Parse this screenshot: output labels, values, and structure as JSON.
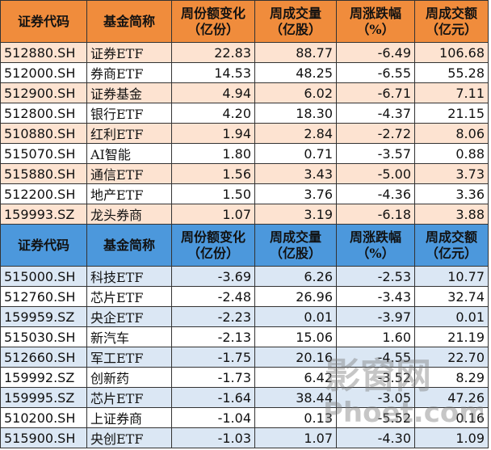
{
  "columns": [
    "证券代码",
    "基金简称",
    "周份额变化\n（亿份）",
    "周成交量\n（亿股）",
    "周涨跌幅\n（%）",
    "周成交额\n（亿元）"
  ],
  "inflow_rows": [
    [
      "512880.SH",
      "证券ETF",
      "22.83",
      "88.77",
      "-6.49",
      "106.68"
    ],
    [
      "512000.SH",
      "券商ETF",
      "14.53",
      "48.25",
      "-6.55",
      "55.28"
    ],
    [
      "512900.SH",
      "证券基金",
      "4.94",
      "6.02",
      "-6.71",
      "7.11"
    ],
    [
      "512800.SH",
      "银行ETF",
      "4.20",
      "18.30",
      "-4.37",
      "21.15"
    ],
    [
      "510880.SH",
      "红利ETF",
      "1.94",
      "2.84",
      "-2.72",
      "8.06"
    ],
    [
      "515070.SH",
      "AI智能",
      "1.80",
      "0.71",
      "-3.57",
      "0.88"
    ],
    [
      "515880.SH",
      "通信ETF",
      "1.56",
      "3.43",
      "-5.00",
      "3.73"
    ],
    [
      "512200.SH",
      "地产ETF",
      "1.50",
      "3.76",
      "-4.36",
      "3.36"
    ],
    [
      "159993.SZ",
      "龙头券商",
      "1.07",
      "3.19",
      "-6.18",
      "3.88"
    ]
  ],
  "outflow_rows": [
    [
      "515000.SH",
      "科技ETF",
      "-3.69",
      "6.26",
      "-2.53",
      "10.77"
    ],
    [
      "512760.SH",
      "芯片ETF",
      "-2.48",
      "26.96",
      "-3.43",
      "32.74"
    ],
    [
      "159959.SZ",
      "央企ETF",
      "-2.23",
      "0.01",
      "-3.97",
      "0.01"
    ],
    [
      "515030.SH",
      "新汽车",
      "-2.13",
      "15.06",
      "1.60",
      "21.19"
    ],
    [
      "512660.SH",
      "军工ETF",
      "-1.75",
      "20.16",
      "-4.55",
      "22.70"
    ],
    [
      "159992.SZ",
      "创新药",
      "-1.73",
      "6.42",
      "-3.52",
      "8.29"
    ],
    [
      "159995.SZ",
      "芯片ETF",
      "-1.64",
      "38.44",
      "-3.05",
      "47.26"
    ],
    [
      "510200.SH",
      "上证券商",
      "-1.04",
      "0.13",
      "-5.52",
      "0.16"
    ],
    [
      "515900.SH",
      "央创ETF",
      "-1.03",
      "1.07",
      "-4.30",
      "1.09"
    ]
  ],
  "colors": {
    "header_inflow": "#f08c3c",
    "header_outflow": "#4c98dc",
    "stripe_inflow": "#fde3d1",
    "stripe_outflow": "#dbe7f4"
  },
  "watermark": {
    "line1": "影窗网",
    "line2": "Phoet.com"
  }
}
